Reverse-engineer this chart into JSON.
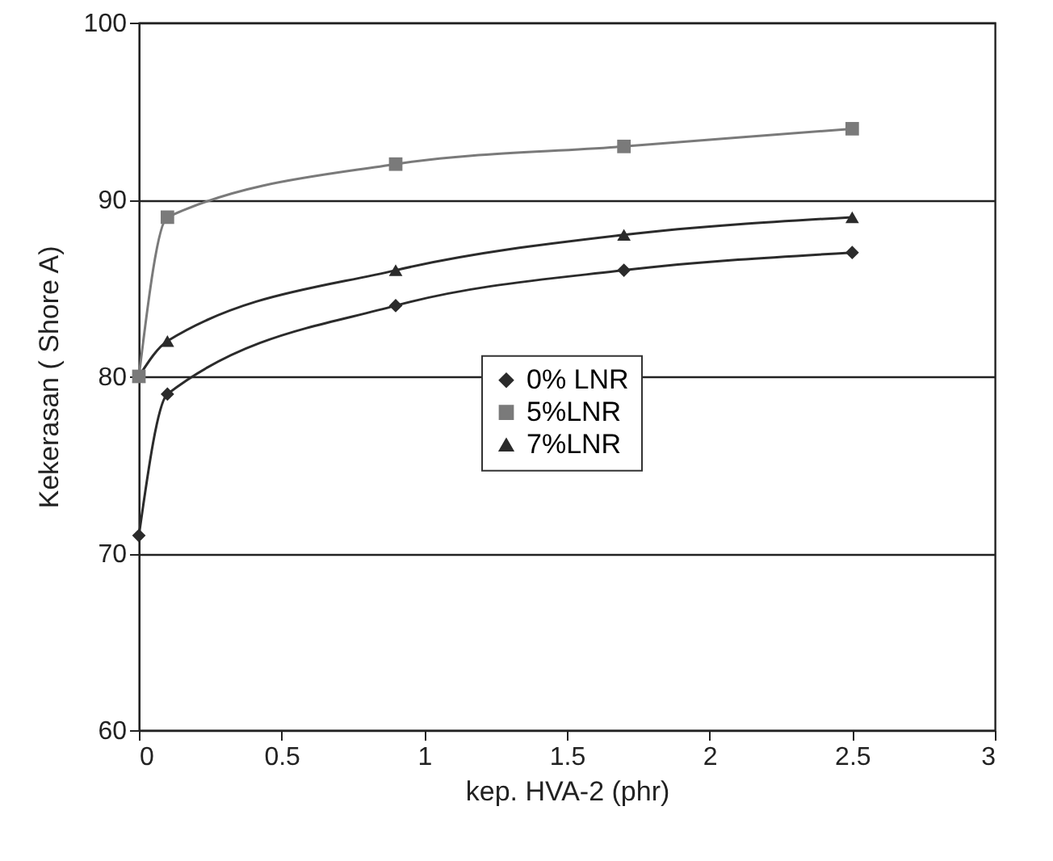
{
  "chart_data": {
    "type": "line",
    "xlabel": "kep. HVA-2 (phr)",
    "ylabel": "Kekerasan ( Shore A)",
    "x": [
      0,
      0.1,
      0.9,
      1.7,
      2.5
    ],
    "series": [
      {
        "name": "0% LNR",
        "color": "#2b2b2b",
        "marker": "diamond",
        "values": [
          71,
          79,
          84,
          86,
          87
        ]
      },
      {
        "name": "5%LNR",
        "color": "#7a7a7a",
        "marker": "square",
        "values": [
          80,
          89,
          92,
          93,
          94
        ]
      },
      {
        "name": "7%LNR",
        "color": "#2b2b2b",
        "marker": "triangle",
        "values": [
          80,
          82,
          86,
          88,
          89
        ]
      }
    ],
    "xlim": [
      0,
      3
    ],
    "xticks": [
      0,
      0.5,
      1,
      1.5,
      2,
      2.5,
      3
    ],
    "ylim": [
      60,
      100
    ],
    "yticks": [
      60,
      70,
      80,
      90,
      100
    ],
    "grid": "y",
    "legend": "right",
    "line_style": "solid"
  }
}
